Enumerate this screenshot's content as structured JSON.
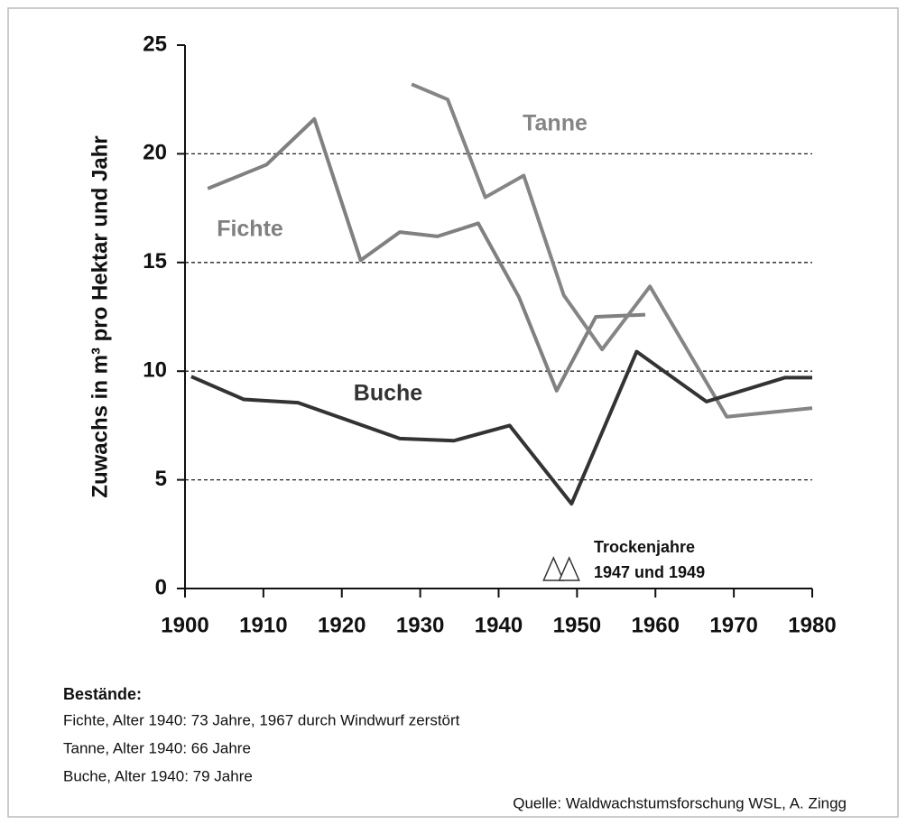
{
  "chart_data": {
    "type": "line",
    "y_label": "Zuwachs in m³ pro Hektar und Jahr",
    "xlim": [
      1900,
      1980
    ],
    "xticks": [
      1900,
      1910,
      1920,
      1930,
      1940,
      1950,
      1960,
      1970,
      1980
    ],
    "ylim": [
      0,
      25
    ],
    "yticks": [
      0,
      5,
      10,
      15,
      20,
      25
    ],
    "grid": true,
    "series": [
      {
        "name": "Fichte",
        "color": "#808080",
        "x": [
          1902.9,
          1910.4,
          1916.5,
          1922.4,
          1927.4,
          1932.2,
          1937.4,
          1942.6,
          1947.4,
          1952.4,
          1958.7
        ],
        "values": [
          18.4,
          19.5,
          21.6,
          15.1,
          16.4,
          16.2,
          16.8,
          13.4,
          9.1,
          12.5,
          12.6
        ]
      },
      {
        "name": "Tanne",
        "color": "#858585",
        "x": [
          1928.9,
          1933.5,
          1938.3,
          1943.2,
          1948.3,
          1953.2,
          1959.3,
          1969.1,
          1980
        ],
        "values": [
          23.2,
          22.5,
          18.0,
          19.0,
          13.5,
          11.0,
          13.9,
          7.9,
          8.3
        ]
      },
      {
        "name": "Buche",
        "color": "#333333",
        "x": [
          1900.8,
          1907.5,
          1914.4,
          1927.4,
          1934.3,
          1941.4,
          1949.3,
          1957.6,
          1966.5,
          1976.5,
          1980
        ],
        "values": [
          9.75,
          8.7,
          8.55,
          6.9,
          6.8,
          7.5,
          3.9,
          10.9,
          8.6,
          9.7,
          9.7
        ]
      }
    ],
    "annotation": {
      "lines": [
        "Trockenjahre",
        "1947 und 1949"
      ],
      "marker_years": [
        1947,
        1949
      ]
    },
    "notes": {
      "heading": "Bestände:",
      "lines": [
        "Fichte, Alter 1940:  73 Jahre, 1967 durch Windwurf zerstört",
        "Tanne, Alter 1940:  66 Jahre",
        "Buche, Alter 1940:  79 Jahre"
      ],
      "source": "Quelle: Waldwachstumsforschung WSL, A. Zingg"
    }
  }
}
